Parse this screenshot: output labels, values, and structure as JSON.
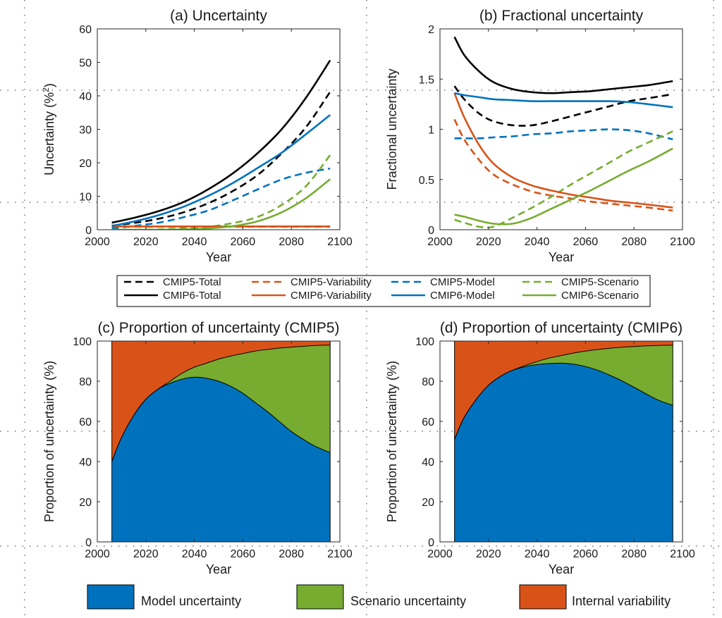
{
  "legend_top": [
    {
      "label": "CMIP5-Total",
      "color": "#000000",
      "dash": true
    },
    {
      "label": "CMIP5-Variability",
      "color": "#d95319",
      "dash": true
    },
    {
      "label": "CMIP5-Model",
      "color": "#0072bd",
      "dash": true
    },
    {
      "label": "CMIP5-Scenario",
      "color": "#77ac30",
      "dash": true
    },
    {
      "label": "CMIP6-Total",
      "color": "#000000",
      "dash": false
    },
    {
      "label": "CMIP6-Variability",
      "color": "#d95319",
      "dash": false
    },
    {
      "label": "CMIP6-Model",
      "color": "#0072bd",
      "dash": false
    },
    {
      "label": "CMIP6-Scenario",
      "color": "#77ac30",
      "dash": false
    }
  ],
  "legend_bottom": [
    {
      "label": "Model uncertainty",
      "color": "#0072bd"
    },
    {
      "label": "Scenario uncertainty",
      "color": "#77ac30"
    },
    {
      "label": "Internal variability",
      "color": "#d95319"
    }
  ],
  "chart_data": [
    {
      "id": "a",
      "type": "line",
      "title": "(a) Uncertainty",
      "xlabel": "Year",
      "ylabel": "Uncertainty (%",
      "ylabel_sup": "2",
      "ylabel_tail": ")",
      "xlim": [
        2000,
        2100
      ],
      "ylim": [
        0,
        60
      ],
      "xticks": [
        2000,
        2020,
        2040,
        2060,
        2080,
        2100
      ],
      "yticks": [
        0,
        10,
        20,
        30,
        40,
        50,
        60
      ],
      "x": [
        2006,
        2016,
        2026,
        2036,
        2046,
        2056,
        2066,
        2076,
        2086,
        2096
      ],
      "series": [
        {
          "name": "CMIP5-Total",
          "color": "#000000",
          "dash": true,
          "values": [
            1.2,
            2.1,
            3.4,
            5.3,
            8,
            11.6,
            16.3,
            22.8,
            30.6,
            41.2
          ]
        },
        {
          "name": "CMIP5-Variability",
          "color": "#d95319",
          "dash": true,
          "values": [
            0.9,
            0.9,
            0.9,
            0.9,
            0.9,
            0.9,
            0.9,
            0.9,
            0.9,
            0.9
          ]
        },
        {
          "name": "CMIP5-Model",
          "color": "#0072bd",
          "dash": true,
          "values": [
            0.4,
            1.2,
            2.2,
            3.8,
            5.8,
            8.8,
            12,
            15,
            17,
            18.3
          ]
        },
        {
          "name": "CMIP5-Scenario",
          "color": "#77ac30",
          "dash": true,
          "values": [
            0,
            0,
            0.1,
            0.4,
            0.9,
            2,
            3.8,
            7.4,
            13,
            22.3
          ]
        },
        {
          "name": "CMIP6-Total",
          "color": "#000000",
          "dash": false,
          "values": [
            2.1,
            3.7,
            5.7,
            8.4,
            12.2,
            16.9,
            22.8,
            30,
            39.4,
            50.6
          ]
        },
        {
          "name": "CMIP6-Variability",
          "color": "#d95319",
          "dash": false,
          "values": [
            1,
            1,
            1,
            1,
            1,
            1,
            1,
            1,
            1,
            1
          ]
        },
        {
          "name": "CMIP6-Model",
          "color": "#0072bd",
          "dash": false,
          "values": [
            1.1,
            2.6,
            4.5,
            7,
            10.2,
            14,
            18.4,
            23,
            28.5,
            34.3
          ]
        },
        {
          "name": "CMIP6-Scenario",
          "color": "#77ac30",
          "dash": false,
          "values": [
            0,
            0,
            0,
            0.1,
            0.4,
            1.1,
            2.5,
            5.2,
            9.4,
            15.1
          ]
        }
      ]
    },
    {
      "id": "b",
      "type": "line",
      "title": "(b) Fractional uncertainty",
      "xlabel": "Year",
      "ylabel": "Fractional uncertainty",
      "xlim": [
        2000,
        2100
      ],
      "ylim": [
        0,
        2
      ],
      "xticks": [
        2000,
        2020,
        2040,
        2060,
        2080,
        2100
      ],
      "yticks": [
        0,
        0.5,
        1,
        1.5,
        2
      ],
      "ytick_labels": [
        "0",
        "0.5",
        "1",
        "1.5",
        "2"
      ],
      "x": [
        2006,
        2010,
        2016,
        2022,
        2030,
        2038,
        2046,
        2054,
        2062,
        2070,
        2078,
        2086,
        2096
      ],
      "series": [
        {
          "name": "CMIP5-Total",
          "color": "#000000",
          "dash": true,
          "values": [
            1.43,
            1.3,
            1.16,
            1.08,
            1.04,
            1.04,
            1.08,
            1.13,
            1.18,
            1.23,
            1.28,
            1.31,
            1.35
          ]
        },
        {
          "name": "CMIP5-Variability",
          "color": "#d95319",
          "dash": true,
          "values": [
            1.1,
            0.9,
            0.7,
            0.55,
            0.45,
            0.38,
            0.34,
            0.31,
            0.28,
            0.26,
            0.24,
            0.22,
            0.19
          ]
        },
        {
          "name": "CMIP5-Model",
          "color": "#0072bd",
          "dash": true,
          "values": [
            0.91,
            0.91,
            0.91,
            0.92,
            0.93,
            0.95,
            0.96,
            0.98,
            0.99,
            1,
            0.99,
            0.96,
            0.9
          ]
        },
        {
          "name": "CMIP5-Scenario",
          "color": "#77ac30",
          "dash": true,
          "values": [
            0.1,
            0.07,
            0.03,
            0.03,
            0.12,
            0.22,
            0.33,
            0.45,
            0.56,
            0.67,
            0.78,
            0.87,
            0.98
          ]
        },
        {
          "name": "CMIP6-Total",
          "color": "#000000",
          "dash": false,
          "values": [
            1.92,
            1.74,
            1.58,
            1.47,
            1.4,
            1.37,
            1.36,
            1.37,
            1.38,
            1.4,
            1.42,
            1.44,
            1.48
          ]
        },
        {
          "name": "CMIP6-Variability",
          "color": "#d95319",
          "dash": false,
          "values": [
            1.36,
            1.12,
            0.85,
            0.66,
            0.52,
            0.44,
            0.39,
            0.35,
            0.32,
            0.29,
            0.27,
            0.25,
            0.22
          ]
        },
        {
          "name": "CMIP6-Model",
          "color": "#0072bd",
          "dash": false,
          "values": [
            1.36,
            1.34,
            1.32,
            1.3,
            1.29,
            1.28,
            1.28,
            1.28,
            1.28,
            1.28,
            1.27,
            1.25,
            1.22
          ]
        },
        {
          "name": "CMIP6-Scenario",
          "color": "#77ac30",
          "dash": false,
          "values": [
            0.15,
            0.13,
            0.09,
            0.06,
            0.06,
            0.12,
            0.21,
            0.3,
            0.39,
            0.49,
            0.59,
            0.68,
            0.81
          ]
        }
      ]
    },
    {
      "id": "c",
      "type": "area",
      "title": "(c) Proportion of uncertainty (CMIP5)",
      "xlabel": "Year",
      "ylabel": "Proportion of uncertainty (%)",
      "xlim": [
        2000,
        2100
      ],
      "ylim": [
        0,
        100
      ],
      "xticks": [
        2000,
        2020,
        2040,
        2060,
        2080,
        2100
      ],
      "yticks": [
        0,
        20,
        40,
        60,
        80,
        100
      ],
      "x": [
        2006,
        2010,
        2015,
        2020,
        2025,
        2030,
        2035,
        2040,
        2045,
        2050,
        2055,
        2060,
        2065,
        2070,
        2075,
        2080,
        2085,
        2090,
        2096
      ],
      "model": [
        40,
        52,
        63,
        71,
        76,
        79,
        81,
        82,
        81.5,
        80,
        77.5,
        74,
        69.5,
        65,
        60,
        55,
        51,
        47.5,
        44.5
      ],
      "model_scenario": [
        40,
        52,
        63,
        71,
        76,
        80,
        84,
        87,
        89,
        91,
        92.5,
        93.8,
        95,
        95.8,
        96.5,
        97,
        97.4,
        97.8,
        98
      ],
      "total": 100
    },
    {
      "id": "d",
      "type": "area",
      "title": "(d) Proportion of uncertainty (CMIP6)",
      "xlabel": "Year",
      "ylabel": "Proportion of uncertainty (%)",
      "xlim": [
        2000,
        2100
      ],
      "ylim": [
        0,
        100
      ],
      "xticks": [
        2000,
        2020,
        2040,
        2060,
        2080,
        2100
      ],
      "yticks": [
        0,
        20,
        40,
        60,
        80,
        100
      ],
      "x": [
        2006,
        2010,
        2015,
        2020,
        2025,
        2030,
        2035,
        2040,
        2045,
        2050,
        2055,
        2060,
        2065,
        2070,
        2075,
        2080,
        2085,
        2090,
        2096
      ],
      "model": [
        51,
        62,
        71,
        78,
        82.5,
        85.5,
        87.2,
        88.3,
        88.8,
        89,
        88.5,
        87.3,
        85.5,
        83,
        80.2,
        77,
        73.7,
        70.6,
        68
      ],
      "model_scenario": [
        51,
        62,
        71,
        78,
        82.5,
        85.5,
        87.8,
        89.8,
        91.5,
        92.8,
        94,
        95,
        95.8,
        96.4,
        96.9,
        97.3,
        97.6,
        97.8,
        98
      ],
      "total": 100
    }
  ]
}
